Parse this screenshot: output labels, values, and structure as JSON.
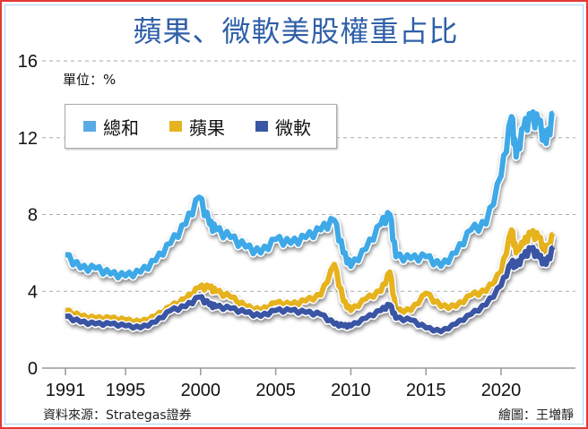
{
  "chart_data": {
    "type": "line",
    "title": "蘋果、微軟美股權重占比",
    "unit_label": "單位：%",
    "xlim": [
      1991,
      2024
    ],
    "ylim": [
      0,
      16
    ],
    "yticks": [
      0,
      4,
      8,
      12,
      16
    ],
    "xticks": [
      1991,
      1995,
      2000,
      2005,
      2010,
      2015,
      2020
    ],
    "grid": "horizontal dashed",
    "legend_placement": "top-left",
    "series": [
      {
        "name": "總和",
        "color": "#3fa9e8",
        "x": [
          1991,
          1992,
          1993,
          1994,
          1995,
          1996,
          1997,
          1998,
          1999,
          1999.9,
          2000.6,
          2001,
          2002,
          2003,
          2004,
          2005,
          2006,
          2007,
          2008,
          2008.9,
          2009.5,
          2010,
          2011,
          2012,
          2012.6,
          2013,
          2014,
          2015,
          2016,
          2017,
          2018,
          2019,
          2020,
          2020.7,
          2021,
          2021.5,
          2022,
          2022.5,
          2023,
          2023.5
        ],
        "values": [
          5.9,
          5.2,
          5.2,
          4.9,
          4.8,
          5.0,
          5.6,
          6.5,
          7.5,
          8.9,
          7.5,
          7.2,
          6.8,
          6.3,
          6.0,
          6.7,
          6.5,
          6.8,
          7.2,
          7.7,
          6.0,
          5.3,
          6.2,
          7.5,
          8.0,
          5.8,
          5.7,
          5.8,
          5.3,
          6.0,
          7.2,
          7.5,
          10.0,
          13.1,
          11.0,
          12.5,
          13.0,
          12.8,
          11.7,
          13.3
        ]
      },
      {
        "name": "蘋果",
        "color": "#e6b31e",
        "x": [
          1991,
          1992,
          1993,
          1994,
          1995,
          1996,
          1997,
          1998,
          1999,
          1999.9,
          2000.6,
          2001,
          2002,
          2003,
          2004,
          2005,
          2006,
          2007,
          2008,
          2008.9,
          2009.5,
          2010,
          2011,
          2012,
          2012.6,
          2013,
          2014,
          2015,
          2016,
          2017,
          2018,
          2019,
          2020,
          2020.7,
          2021,
          2021.5,
          2022,
          2022.5,
          2023,
          2023.5
        ],
        "values": [
          3.0,
          2.7,
          2.6,
          2.6,
          2.5,
          2.4,
          2.7,
          3.2,
          3.6,
          4.2,
          4.2,
          4.0,
          3.7,
          3.2,
          3.0,
          3.4,
          3.3,
          3.5,
          3.8,
          5.4,
          3.5,
          3.0,
          3.6,
          4.0,
          5.0,
          3.0,
          3.0,
          3.9,
          3.2,
          3.2,
          3.8,
          4.0,
          5.0,
          7.2,
          6.0,
          6.5,
          7.0,
          6.8,
          6.0,
          7.0
        ]
      },
      {
        "name": "微軟",
        "color": "#3a55a4",
        "x": [
          1991,
          1992,
          1993,
          1994,
          1995,
          1996,
          1997,
          1998,
          1999,
          1999.9,
          2000.6,
          2001,
          2002,
          2003,
          2004,
          2005,
          2006,
          2007,
          2008,
          2008.9,
          2009.5,
          2010,
          2011,
          2012,
          2012.6,
          2013,
          2014,
          2015,
          2016,
          2017,
          2018,
          2019,
          2020,
          2020.7,
          2021,
          2021.5,
          2022,
          2022.5,
          2023,
          2023.5
        ],
        "values": [
          2.7,
          2.4,
          2.3,
          2.3,
          2.2,
          2.1,
          2.4,
          3.0,
          3.2,
          3.7,
          3.3,
          3.2,
          3.1,
          2.9,
          2.7,
          3.0,
          3.0,
          2.9,
          2.8,
          2.3,
          2.2,
          2.2,
          2.6,
          3.0,
          3.3,
          2.6,
          2.5,
          2.1,
          1.9,
          2.3,
          2.8,
          3.3,
          4.3,
          5.5,
          5.3,
          5.8,
          6.2,
          5.8,
          5.4,
          6.3
        ]
      }
    ]
  },
  "footer": {
    "source": "資料來源：Strategas證券",
    "credit": "繪圖：王増靜"
  }
}
